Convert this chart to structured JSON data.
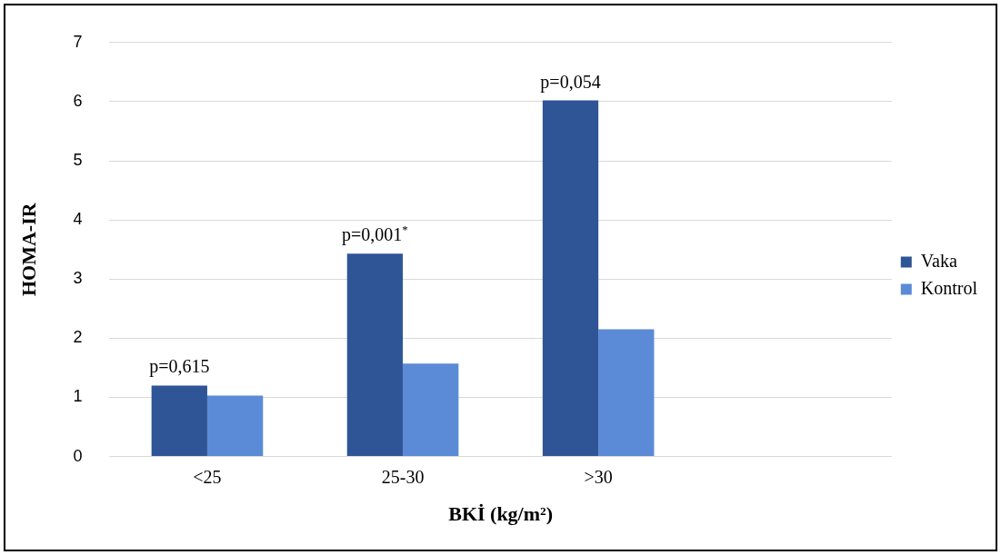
{
  "chart_data": {
    "type": "bar",
    "xlabel": "BKİ (kg/m²)",
    "ylabel": "HOMA-IR",
    "categories": [
      "<25",
      "25-30",
      ">30",
      null
    ],
    "series": [
      {
        "name": "Vaka",
        "color": "#2f5597",
        "values": [
          1.2,
          3.43,
          6.02,
          null
        ]
      },
      {
        "name": "Kontrol",
        "color": "#5b8bd6",
        "values": [
          1.03,
          1.57,
          2.15,
          null
        ]
      }
    ],
    "ylim": [
      0,
      7
    ],
    "yticks": [
      0,
      1,
      2,
      3,
      4,
      5,
      6,
      7
    ],
    "grid": "y",
    "legend": "right",
    "annotations": [
      {
        "text": "p=0,615",
        "x": "<25",
        "y": 1.2
      },
      {
        "text": "p=0,001$^{*}$",
        "x": "25-30",
        "y": 3.43
      },
      {
        "text": "p=0,054",
        "x": ">30",
        "y": 6.02
      }
    ]
  }
}
